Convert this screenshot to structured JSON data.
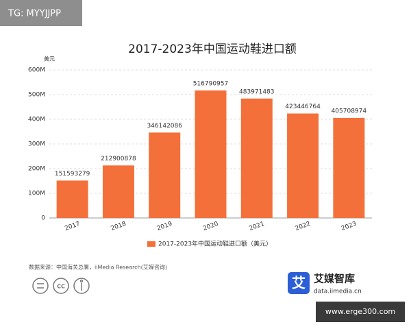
{
  "chart_data": {
    "type": "bar",
    "title": "2017-2023年中国运动鞋进口额",
    "y_unit": "美元",
    "categories": [
      "2017",
      "2018",
      "2019",
      "2020",
      "2021",
      "2022",
      "2023"
    ],
    "series": [
      {
        "name": "2017-2023年中国运动鞋进口额（美元）",
        "color": "#f4703a",
        "values": [
          151593279,
          212900878,
          346142086,
          516790957,
          483971483,
          423446764,
          405708974
        ]
      }
    ],
    "ylim": [
      0,
      600000000
    ],
    "yticks": [
      0,
      {
        "value": 100000000,
        "label": "100M"
      },
      {
        "value": 200000000,
        "label": "200M"
      },
      {
        "value": 300000000,
        "label": "300M"
      },
      {
        "value": 400000000,
        "label": "400M"
      },
      {
        "value": 500000000,
        "label": "500M"
      },
      {
        "value": 600000000,
        "label": "600M"
      }
    ],
    "grid": true,
    "source": "数据来源：中国海关总署，iiMedia Research(艾媒咨询)"
  },
  "watermark": "TG: MYYJJPP",
  "logo": {
    "icon": "艾",
    "name": "艾媒智库",
    "url": "data.iimedia.cn"
  },
  "site": "www.erge300.com"
}
